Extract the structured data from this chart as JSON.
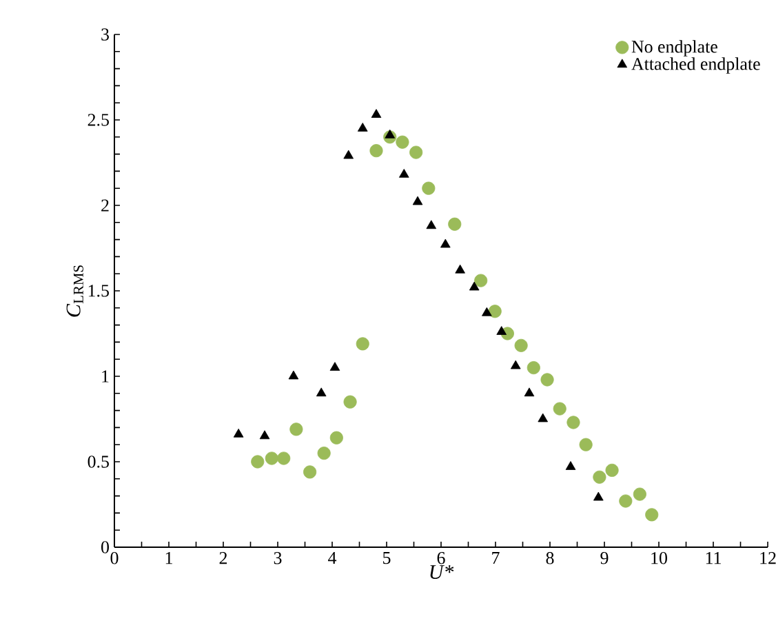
{
  "chart_data": {
    "type": "scatter",
    "xlabel": "U*",
    "ylabel": "*C*$_{LRMS}$",
    "xlim": [
      0,
      12
    ],
    "ylim": [
      0,
      3
    ],
    "xticks": [
      0,
      1,
      2,
      3,
      4,
      5,
      6,
      7,
      8,
      9,
      10,
      11,
      12
    ],
    "yticks": [
      0,
      0.5,
      1,
      1.5,
      2,
      2.5,
      3
    ],
    "grid": false,
    "legend": "top right",
    "series": [
      {
        "name": "No endplate",
        "color": "#9bbb59",
        "marker": "circle",
        "x": [
          2.63,
          2.89,
          3.11,
          3.34,
          3.59,
          3.85,
          4.08,
          4.33,
          4.56,
          4.81,
          5.06,
          5.29,
          5.54,
          5.77,
          6.25,
          6.73,
          6.99,
          7.22,
          7.47,
          7.7,
          7.95,
          8.18,
          8.43,
          8.66,
          8.91,
          9.14,
          9.39,
          9.65,
          9.87
        ],
        "values": [
          0.5,
          0.52,
          0.52,
          0.69,
          0.44,
          0.55,
          0.64,
          0.85,
          1.19,
          2.32,
          2.4,
          2.37,
          2.31,
          2.1,
          1.89,
          1.56,
          1.38,
          1.25,
          1.18,
          1.05,
          0.98,
          0.81,
          0.73,
          0.6,
          0.41,
          0.45,
          0.27,
          0.31,
          0.19
        ]
      },
      {
        "name": "Attached endplate",
        "color": "#000000",
        "marker": "triangle",
        "x": [
          2.28,
          2.76,
          3.29,
          3.8,
          4.05,
          4.3,
          4.56,
          4.81,
          5.06,
          5.32,
          5.57,
          5.82,
          6.08,
          6.35,
          6.61,
          6.84,
          7.11,
          7.37,
          7.62,
          7.87,
          8.38,
          8.89
        ],
        "values": [
          0.66,
          0.65,
          1.0,
          0.9,
          1.05,
          2.29,
          2.45,
          2.53,
          2.41,
          2.18,
          2.02,
          1.88,
          1.77,
          1.62,
          1.52,
          1.37,
          1.26,
          1.06,
          0.9,
          0.75,
          0.47,
          0.29
        ]
      }
    ]
  }
}
